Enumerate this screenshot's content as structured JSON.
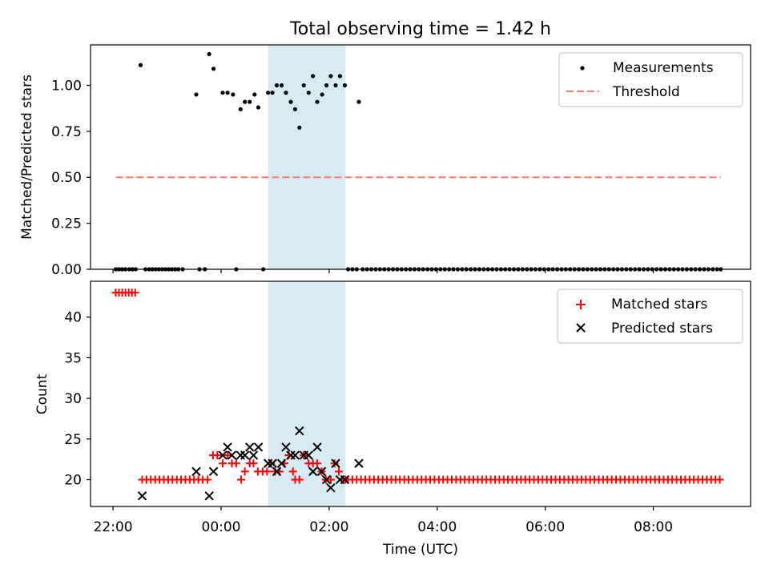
{
  "figure": {
    "title": "Total observing time = 1.42 h",
    "xlabel": "Time (UTC)",
    "x_tick_labels": [
      "22:00",
      "00:00",
      "02:00",
      "04:00",
      "06:00",
      "08:00"
    ],
    "highlight_color": "#add8e6"
  },
  "chart_data": [
    {
      "type": "scatter",
      "ylabel": "Matched/Predicted stars",
      "ylim": [
        0,
        1.22
      ],
      "y_ticks": [
        0.0,
        0.25,
        0.5,
        0.75,
        1.0
      ],
      "y_tick_labels": [
        "0.00",
        "0.25",
        "0.50",
        "0.75",
        "1.00"
      ],
      "x_unit": "hours since 00:00 UTC",
      "highlight_span": [
        0.87,
        2.3
      ],
      "legend": {
        "position": "upper right",
        "entries": [
          "Measurements",
          "Threshold"
        ]
      },
      "series": [
        {
          "name": "Measurements",
          "marker": "dot",
          "color": "#000000",
          "points": [
            [
              -1.95,
              0
            ],
            [
              -1.89,
              0
            ],
            [
              -1.83,
              0
            ],
            [
              -1.77,
              0
            ],
            [
              -1.7,
              0
            ],
            [
              -1.64,
              0
            ],
            [
              -1.58,
              0
            ],
            [
              -1.49,
              1.11
            ],
            [
              -1.4,
              0
            ],
            [
              -1.33,
              0
            ],
            [
              -1.27,
              0
            ],
            [
              -1.21,
              0
            ],
            [
              -1.15,
              0
            ],
            [
              -1.09,
              0
            ],
            [
              -1.03,
              0
            ],
            [
              -0.97,
              0
            ],
            [
              -0.91,
              0
            ],
            [
              -0.85,
              0
            ],
            [
              -0.79,
              0
            ],
            [
              -0.71,
              0
            ],
            [
              -0.46,
              0.95
            ],
            [
              -0.4,
              0
            ],
            [
              -0.3,
              0
            ],
            [
              -0.22,
              1.17
            ],
            [
              -0.14,
              1.09
            ],
            [
              0.03,
              0.96
            ],
            [
              0.12,
              0.96
            ],
            [
              0.22,
              0.95
            ],
            [
              0.28,
              0
            ],
            [
              0.36,
              0.87
            ],
            [
              0.44,
              0.91
            ],
            [
              0.53,
              0.91
            ],
            [
              0.62,
              0.95
            ],
            [
              0.69,
              0.88
            ],
            [
              0.78,
              0
            ],
            [
              0.87,
              0.96
            ],
            [
              0.95,
              0.96
            ],
            [
              1.03,
              1.0
            ],
            [
              1.12,
              1.0
            ],
            [
              1.2,
              0.96
            ],
            [
              1.29,
              0.91
            ],
            [
              1.37,
              0.87
            ],
            [
              1.45,
              0.77
            ],
            [
              1.53,
              1.0
            ],
            [
              1.62,
              0.96
            ],
            [
              1.7,
              1.05
            ],
            [
              1.78,
              0.91
            ],
            [
              1.87,
              0.95
            ],
            [
              1.95,
              1.0
            ],
            [
              2.03,
              1.05
            ],
            [
              2.12,
              1.0
            ],
            [
              2.2,
              1.05
            ],
            [
              2.29,
              1.0
            ],
            [
              2.55,
              0.91
            ],
            [
              2.35,
              0
            ],
            [
              2.43,
              0
            ],
            [
              2.51,
              0
            ],
            [
              2.62,
              0
            ],
            [
              2.7,
              0
            ],
            [
              2.78,
              0
            ],
            [
              2.86,
              0
            ],
            [
              2.94,
              0
            ],
            [
              3.02,
              0
            ],
            [
              3.1,
              0
            ],
            [
              3.18,
              0
            ],
            [
              3.26,
              0
            ],
            [
              3.34,
              0
            ],
            [
              3.42,
              0
            ],
            [
              3.5,
              0
            ],
            [
              3.58,
              0
            ],
            [
              3.66,
              0
            ],
            [
              3.74,
              0
            ],
            [
              3.82,
              0
            ],
            [
              3.9,
              0
            ],
            [
              3.98,
              0
            ],
            [
              4.06,
              0
            ],
            [
              4.14,
              0
            ],
            [
              4.22,
              0
            ],
            [
              4.3,
              0
            ],
            [
              4.38,
              0
            ],
            [
              4.46,
              0
            ],
            [
              4.54,
              0
            ],
            [
              4.62,
              0
            ],
            [
              4.7,
              0
            ],
            [
              4.78,
              0
            ],
            [
              4.86,
              0
            ],
            [
              4.94,
              0
            ],
            [
              5.02,
              0
            ],
            [
              5.1,
              0
            ],
            [
              5.18,
              0
            ],
            [
              5.26,
              0
            ],
            [
              5.34,
              0
            ],
            [
              5.42,
              0
            ],
            [
              5.5,
              0
            ],
            [
              5.58,
              0
            ],
            [
              5.66,
              0
            ],
            [
              5.74,
              0
            ],
            [
              5.82,
              0
            ],
            [
              5.9,
              0
            ],
            [
              5.98,
              0
            ],
            [
              6.06,
              0
            ],
            [
              6.14,
              0
            ],
            [
              6.22,
              0
            ],
            [
              6.3,
              0
            ],
            [
              6.38,
              0
            ],
            [
              6.46,
              0
            ],
            [
              6.54,
              0
            ],
            [
              6.62,
              0
            ],
            [
              6.7,
              0
            ],
            [
              6.78,
              0
            ],
            [
              6.86,
              0
            ],
            [
              6.94,
              0
            ],
            [
              7.02,
              0
            ],
            [
              7.1,
              0
            ],
            [
              7.18,
              0
            ],
            [
              7.26,
              0
            ],
            [
              7.34,
              0
            ],
            [
              7.42,
              0
            ],
            [
              7.5,
              0
            ],
            [
              7.58,
              0
            ],
            [
              7.66,
              0
            ],
            [
              7.74,
              0
            ],
            [
              7.82,
              0
            ],
            [
              7.9,
              0
            ],
            [
              7.98,
              0
            ],
            [
              8.06,
              0
            ],
            [
              8.14,
              0
            ],
            [
              8.22,
              0
            ],
            [
              8.3,
              0
            ],
            [
              8.38,
              0
            ],
            [
              8.46,
              0
            ],
            [
              8.54,
              0
            ],
            [
              8.62,
              0
            ],
            [
              8.7,
              0
            ],
            [
              8.78,
              0
            ],
            [
              8.86,
              0
            ],
            [
              8.94,
              0
            ],
            [
              9.02,
              0
            ],
            [
              9.1,
              0
            ],
            [
              9.18,
              0
            ],
            [
              9.25,
              0
            ]
          ]
        },
        {
          "name": "Threshold",
          "style": "dashed",
          "color": "#ff7777",
          "x": [
            -1.95,
            9.25
          ],
          "y": [
            0.5,
            0.5
          ]
        }
      ]
    },
    {
      "type": "scatter",
      "ylabel": "Count",
      "ylim": [
        16.7,
        44.4
      ],
      "y_ticks": [
        20,
        25,
        30,
        35,
        40
      ],
      "y_tick_labels": [
        "20",
        "25",
        "30",
        "35",
        "40"
      ],
      "x_unit": "hours since 00:00 UTC",
      "highlight_span": [
        0.87,
        2.3
      ],
      "legend": {
        "position": "upper right",
        "entries": [
          "Matched stars",
          "Predicted stars"
        ]
      },
      "series": [
        {
          "name": "Matched stars",
          "marker": "plus",
          "color": "#ff0000",
          "fill_range": {
            "x_start": 2.35,
            "x_end": 9.25,
            "step": 0.08,
            "y": 20
          },
          "points": [
            [
              -1.95,
              43
            ],
            [
              -1.89,
              43
            ],
            [
              -1.83,
              43
            ],
            [
              -1.77,
              43
            ],
            [
              -1.71,
              43
            ],
            [
              -1.65,
              43
            ],
            [
              -1.59,
              43
            ],
            [
              -1.46,
              20
            ],
            [
              -1.38,
              20
            ],
            [
              -1.3,
              20
            ],
            [
              -1.22,
              20
            ],
            [
              -1.14,
              20
            ],
            [
              -1.06,
              20
            ],
            [
              -0.98,
              20
            ],
            [
              -0.9,
              20
            ],
            [
              -0.82,
              20
            ],
            [
              -0.74,
              20
            ],
            [
              -0.66,
              20
            ],
            [
              -0.58,
              20
            ],
            [
              -0.5,
              20
            ],
            [
              -0.42,
              20
            ],
            [
              -0.34,
              20
            ],
            [
              -0.25,
              20
            ],
            [
              -0.15,
              23
            ],
            [
              -0.07,
              23
            ],
            [
              0.03,
              22
            ],
            [
              0.12,
              23
            ],
            [
              0.2,
              22
            ],
            [
              0.28,
              22
            ],
            [
              0.37,
              20
            ],
            [
              0.44,
              21
            ],
            [
              0.53,
              22
            ],
            [
              0.6,
              22
            ],
            [
              0.68,
              21
            ],
            [
              0.77,
              21
            ],
            [
              0.85,
              21
            ],
            [
              0.92,
              22
            ],
            [
              1.0,
              21
            ],
            [
              1.08,
              21
            ],
            [
              1.17,
              22
            ],
            [
              1.25,
              23
            ],
            [
              1.33,
              21
            ],
            [
              1.37,
              20
            ],
            [
              1.45,
              20
            ],
            [
              1.53,
              23
            ],
            [
              1.62,
              22
            ],
            [
              1.7,
              22
            ],
            [
              1.78,
              22
            ],
            [
              1.86,
              21
            ],
            [
              1.94,
              20
            ],
            [
              2.03,
              20
            ],
            [
              2.1,
              22
            ],
            [
              2.18,
              21
            ],
            [
              2.26,
              20
            ],
            [
              2.3,
              20
            ]
          ]
        },
        {
          "name": "Predicted stars",
          "marker": "x",
          "color": "#000000",
          "points": [
            [
              -1.46,
              18
            ],
            [
              -0.46,
              21
            ],
            [
              -0.22,
              18
            ],
            [
              -0.14,
              21
            ],
            [
              0.03,
              23
            ],
            [
              0.12,
              24
            ],
            [
              0.2,
              23
            ],
            [
              0.36,
              23
            ],
            [
              0.44,
              23
            ],
            [
              0.53,
              24
            ],
            [
              0.6,
              23
            ],
            [
              0.69,
              24
            ],
            [
              0.87,
              22
            ],
            [
              0.95,
              22
            ],
            [
              1.03,
              21
            ],
            [
              1.12,
              22
            ],
            [
              1.2,
              24
            ],
            [
              1.29,
              23
            ],
            [
              1.37,
              23
            ],
            [
              1.45,
              26
            ],
            [
              1.53,
              23
            ],
            [
              1.62,
              23
            ],
            [
              1.7,
              21
            ],
            [
              1.78,
              24
            ],
            [
              1.86,
              21
            ],
            [
              1.95,
              20
            ],
            [
              2.03,
              19
            ],
            [
              2.12,
              22
            ],
            [
              2.2,
              20
            ],
            [
              2.29,
              20
            ],
            [
              2.55,
              22
            ]
          ]
        }
      ]
    }
  ]
}
